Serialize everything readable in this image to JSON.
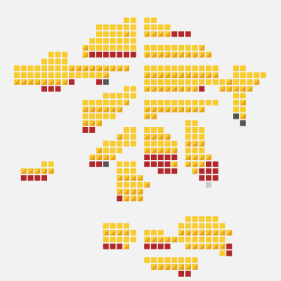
{
  "map": {
    "tile_colors": [
      "#f8cb2e",
      "#e9a21a",
      "#b3272b",
      "#555555",
      "#c9c9c9"
    ]
  }
}
